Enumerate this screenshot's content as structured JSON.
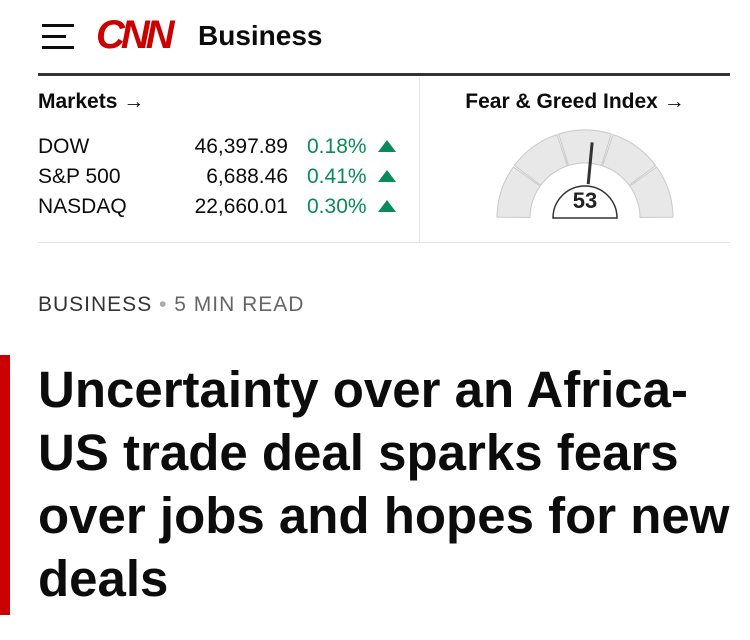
{
  "header": {
    "logo": "CNN",
    "section": "Business"
  },
  "markets": {
    "title": "Markets",
    "rows": [
      {
        "name": "DOW",
        "value": "46,397.89",
        "change": "0.18%"
      },
      {
        "name": "S&P 500",
        "value": "6,688.46",
        "change": "0.41%"
      },
      {
        "name": "NASDAQ",
        "value": "22,660.01",
        "change": "0.30%"
      }
    ]
  },
  "fear_greed": {
    "title": "Fear & Greed Index",
    "value": 53,
    "range": [
      0,
      100
    ]
  },
  "article": {
    "section": "BUSINESS",
    "read_time": "5 MIN READ",
    "headline": "Uncertainty over an Africa-US trade deal sparks fears over jobs and hopes for new deals"
  }
}
